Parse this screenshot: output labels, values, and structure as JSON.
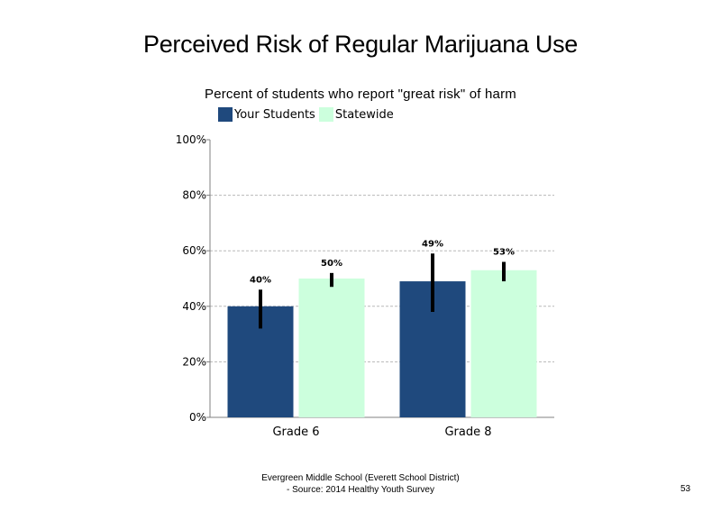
{
  "chart_data": {
    "type": "bar",
    "title": "Perceived Risk of Regular Marijuana Use",
    "subtitle": "Percent of students who report \"great risk\" of harm",
    "categories": [
      "Grade 6",
      "Grade 8"
    ],
    "series": [
      {
        "name": "Your Students",
        "values": [
          40,
          49
        ],
        "labels": [
          "40%",
          "49%"
        ],
        "error_low": [
          32,
          38
        ],
        "error_high": [
          46,
          59
        ],
        "color": "#1f497d"
      },
      {
        "name": "Statewide",
        "values": [
          50,
          53
        ],
        "labels": [
          "50%",
          "53%"
        ],
        "error_low": [
          47,
          49
        ],
        "error_high": [
          52,
          56
        ],
        "color": "#ccffdd"
      }
    ],
    "ylim": [
      0,
      100
    ],
    "yticks": [
      "0%",
      "20%",
      "40%",
      "60%",
      "80%",
      "100%"
    ],
    "ytick_values": [
      0,
      20,
      40,
      60,
      80,
      100
    ],
    "gridlines": true,
    "legend_position": "top-left"
  },
  "footer": {
    "line1": "Evergreen Middle School (Everett School District)",
    "line2": "- Source: 2014 Healthy  Youth Survey"
  },
  "page_number": "53"
}
